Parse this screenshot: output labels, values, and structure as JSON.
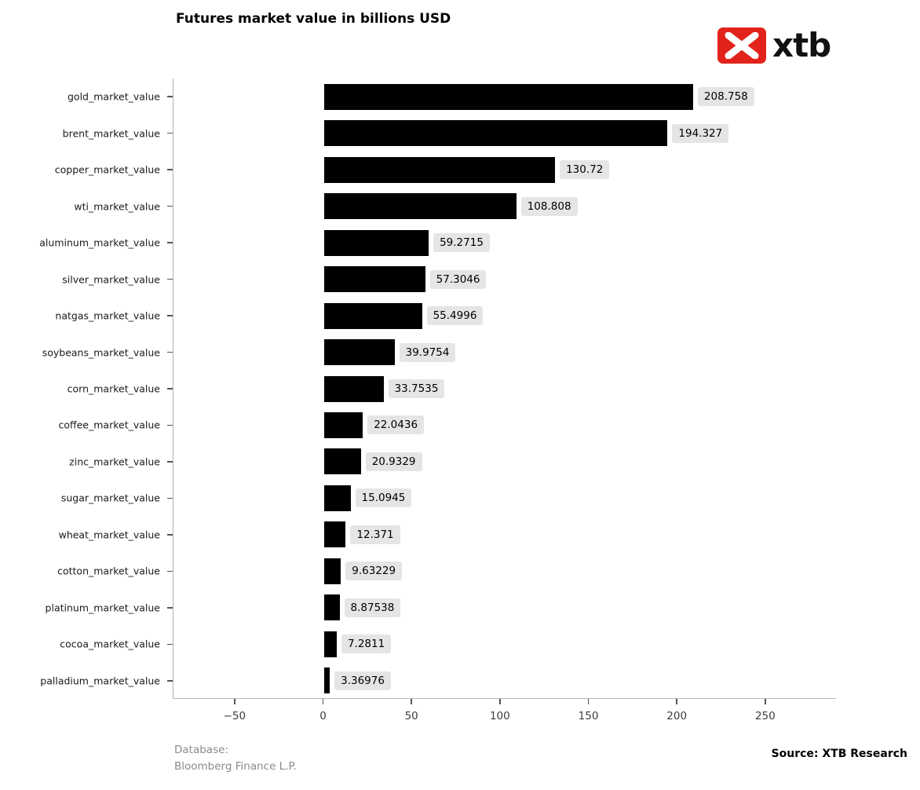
{
  "title": "Futures market value in billions USD",
  "logo": {
    "text": "xtb",
    "brand_color": "#e2231b",
    "glyph_color": "#ffffff"
  },
  "footer": {
    "database_label": "Database:",
    "database_name": "Bloomberg Finance L.P.",
    "source": "Source: XTB Research"
  },
  "chart_data": {
    "type": "bar",
    "orientation": "horizontal",
    "title": "Futures market value in billions USD",
    "xlabel": "",
    "ylabel": "",
    "categories": [
      "gold_market_value",
      "brent_market_value",
      "copper_market_value",
      "wti_market_value",
      "aluminum_market_value",
      "silver_market_value",
      "natgas_market_value",
      "soybeans_market_value",
      "corn_market_value",
      "coffee_market_value",
      "zinc_market_value",
      "sugar_market_value",
      "wheat_market_value",
      "cotton_market_value",
      "platinum_market_value",
      "cocoa_market_value",
      "palladium_market_value"
    ],
    "values": [
      208.758,
      194.327,
      130.72,
      108.808,
      59.2715,
      57.3046,
      55.4996,
      39.9754,
      33.7535,
      22.0436,
      20.9329,
      15.0945,
      12.371,
      9.63229,
      8.87538,
      7.2811,
      3.36976
    ],
    "value_labels": [
      "208.758",
      "194.327",
      "130.72",
      "108.808",
      "59.2715",
      "57.3046",
      "55.4996",
      "39.9754",
      "33.7535",
      "22.0436",
      "20.9329",
      "15.0945",
      "12.371",
      "9.63229",
      "8.87538",
      "7.2811",
      "3.36976"
    ],
    "x_ticks": [
      -50,
      0,
      50,
      100,
      150,
      200,
      250
    ],
    "xlim": [
      -85,
      290
    ],
    "bar_color": "#000000",
    "value_box_color": "#e5e5e5",
    "grid": false,
    "legend": null
  }
}
